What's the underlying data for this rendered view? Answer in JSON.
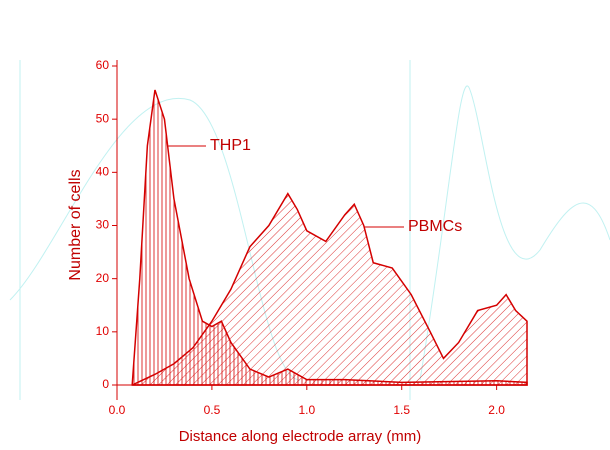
{
  "chart_data": {
    "type": "area",
    "xlabel": "Distance along electrode array (mm)",
    "ylabel": "Number of cells",
    "xlim": [
      0,
      2.16
    ],
    "ylim": [
      0,
      60
    ],
    "xticks": [
      {
        "value": 0,
        "label": "0.0"
      },
      {
        "value": 0.5,
        "label": "0.5"
      },
      {
        "value": 1,
        "label": "1.0"
      },
      {
        "value": 1.5,
        "label": "1.5"
      },
      {
        "value": 2,
        "label": "2.0"
      }
    ],
    "yticks": [
      0,
      10,
      20,
      30,
      40,
      50,
      60
    ],
    "series": [
      {
        "name": "THP1",
        "color": "#d40000",
        "hatch": "vertical",
        "x": [
          0.08,
          0.12,
          0.16,
          0.2,
          0.25,
          0.3,
          0.38,
          0.45,
          0.5,
          0.55,
          0.6,
          0.7,
          0.8,
          0.9,
          1.0,
          1.2,
          1.5,
          2.0,
          2.16
        ],
        "values": [
          0,
          20,
          45,
          55.5,
          50,
          35,
          20,
          12,
          11,
          12,
          8,
          3,
          1.5,
          3,
          1,
          1,
          0.5,
          0.8,
          0.5
        ]
      },
      {
        "name": "PBMCs",
        "color": "#d40000",
        "hatch": "diagonal",
        "x": [
          0.08,
          0.2,
          0.3,
          0.4,
          0.5,
          0.6,
          0.7,
          0.8,
          0.9,
          0.95,
          1.0,
          1.1,
          1.2,
          1.25,
          1.3,
          1.35,
          1.45,
          1.55,
          1.65,
          1.72,
          1.8,
          1.9,
          2.0,
          2.05,
          2.1,
          2.16
        ],
        "values": [
          0,
          2,
          4,
          7,
          12,
          18,
          26,
          30,
          36,
          33,
          29,
          27,
          32,
          34,
          30,
          23,
          22,
          17,
          10,
          5,
          8,
          14,
          15,
          17,
          14,
          12
        ]
      }
    ]
  }
}
